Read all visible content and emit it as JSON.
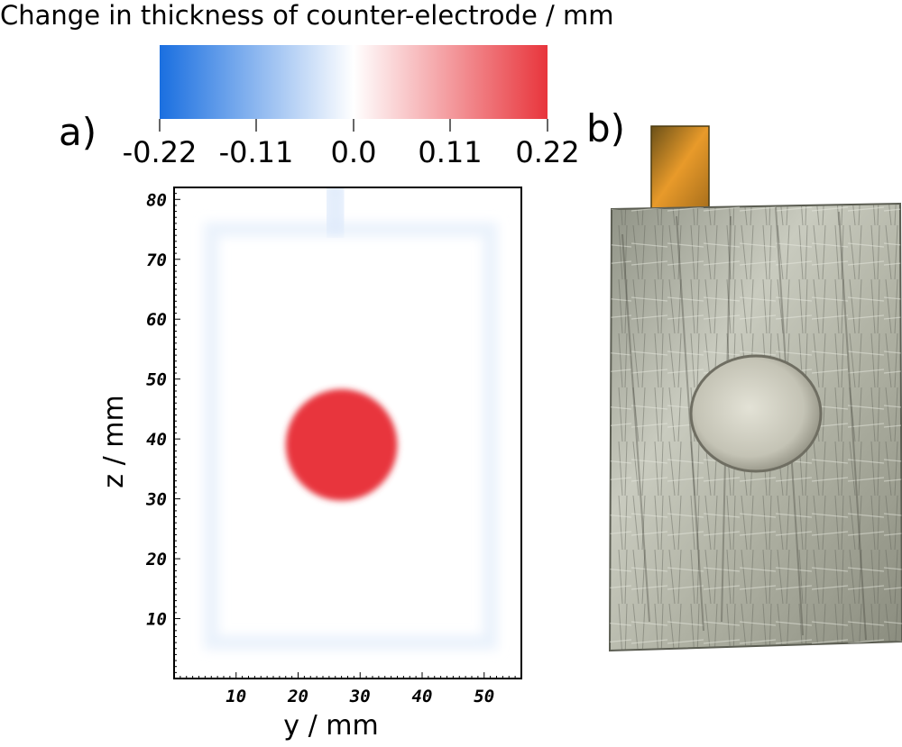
{
  "colorbar": {
    "title": "Change in thickness of counter-electrode / mm",
    "ticks": [
      "-0.22",
      "-0.11",
      "0.0",
      "0.11",
      "0.22"
    ],
    "min": -0.22,
    "max": 0.22,
    "colors": {
      "low": "#1a6fe0",
      "mid": "#ffffff",
      "high": "#e8353c"
    }
  },
  "panels": {
    "a_label": "a)",
    "b_label": "b)"
  },
  "chart_data": {
    "type": "heatmap",
    "title": "",
    "xlabel": "y / mm",
    "ylabel": "z / mm",
    "xlim": [
      0,
      56
    ],
    "ylim": [
      0,
      82
    ],
    "xticks": [
      "10",
      "20",
      "30",
      "40",
      "50"
    ],
    "yticks": [
      "10",
      "20",
      "30",
      "40",
      "50",
      "60",
      "70",
      "80"
    ],
    "value_range": [
      -0.22,
      0.22
    ],
    "background_value": 0.0,
    "features": [
      {
        "kind": "circle",
        "center_y_mm": 27,
        "center_z_mm": 39,
        "radius_mm": 9,
        "value": 0.22
      },
      {
        "kind": "border_outline",
        "y_min_mm": 6,
        "y_max_mm": 51,
        "z_min_mm": 6,
        "z_max_mm": 75,
        "value": -0.02
      },
      {
        "kind": "tab_outline",
        "y_min_mm": 25,
        "y_max_mm": 27,
        "z_min_mm": 75,
        "z_max_mm": 82,
        "value": -0.03
      }
    ]
  }
}
